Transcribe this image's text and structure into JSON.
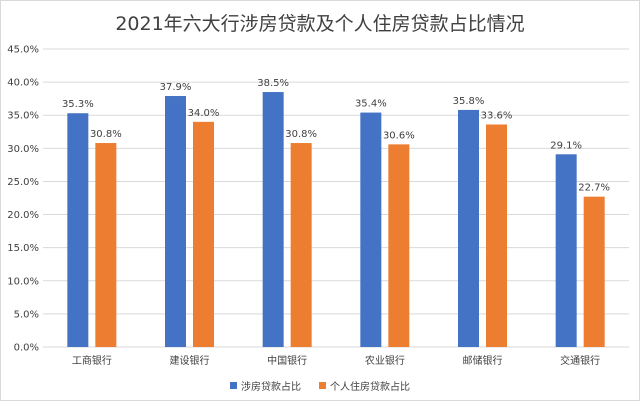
{
  "chart_data": {
    "type": "bar",
    "title": "2021年六大行涉房贷款及个人住房贷款占比情况",
    "categories": [
      "工商银行",
      "建设银行",
      "中国银行",
      "农业银行",
      "邮储银行",
      "交通银行"
    ],
    "series": [
      {
        "name": "涉房贷款占比",
        "values": [
          35.3,
          37.9,
          38.5,
          35.4,
          35.8,
          29.1
        ],
        "labels": [
          "35.3%",
          "37.9%",
          "38.5%",
          "35.4%",
          "35.8%",
          "29.1%"
        ],
        "color": "#4472C4"
      },
      {
        "name": "个人住房贷款占比",
        "values": [
          30.8,
          34.0,
          30.8,
          30.6,
          33.6,
          22.7
        ],
        "labels": [
          "30.8%",
          "34.0%",
          "30.8%",
          "30.6%",
          "33.6%",
          "22.7%"
        ],
        "color": "#ED7D31"
      }
    ],
    "ylim": [
      0,
      45
    ],
    "yticks": [
      0,
      5,
      10,
      15,
      20,
      25,
      30,
      35,
      40,
      45
    ],
    "ytick_labels": [
      "0.0%",
      "5.0%",
      "10.0%",
      "15.0%",
      "20.0%",
      "25.0%",
      "30.0%",
      "35.0%",
      "40.0%",
      "45.0%"
    ],
    "grid": true,
    "legend_position": "bottom",
    "gridline_color": "#d9d9d9"
  }
}
